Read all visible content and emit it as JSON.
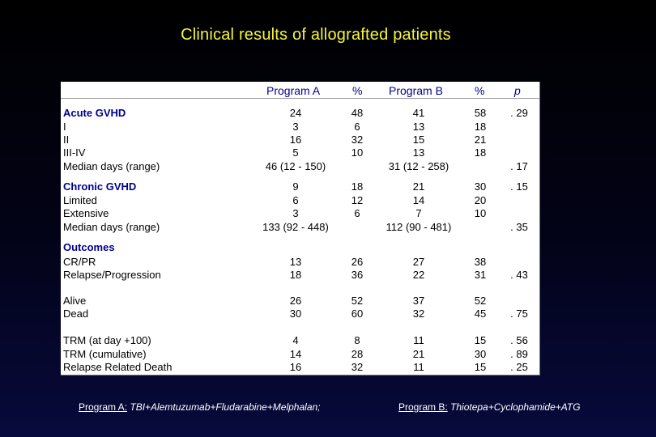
{
  "title": "Clinical results of allografted patients",
  "table": {
    "headers": {
      "program_a": "Program A",
      "pct_a": "%",
      "program_b": "Program B",
      "pct_b": "%",
      "p": "p"
    },
    "rows": [
      {
        "label": "Acute GVHD",
        "a": "24",
        "pa": "48",
        "b": "41",
        "pb": "58",
        "p": ". 29",
        "section": true
      },
      {
        "label": "I",
        "a": "3",
        "pa": "6",
        "b": "13",
        "pb": "18",
        "p": ""
      },
      {
        "label": "II",
        "a": "16",
        "pa": "32",
        "b": "15",
        "pb": "21",
        "p": ""
      },
      {
        "label": "III-IV",
        "a": "5",
        "pa": "10",
        "b": "13",
        "pb": "18",
        "p": ""
      },
      {
        "label": "Median days (range)",
        "a": "46 (12 - 150)",
        "pa": "",
        "b": "31 (12 - 258)",
        "pb": "",
        "p": ". 17"
      },
      {
        "label": "Chronic GVHD",
        "a": "9",
        "pa": "18",
        "b": "21",
        "pb": "30",
        "p": ". 15",
        "section": true
      },
      {
        "label": "Limited",
        "a": "6",
        "pa": "12",
        "b": "14",
        "pb": "20",
        "p": ""
      },
      {
        "label": "Extensive",
        "a": "3",
        "pa": "6",
        "b": "7",
        "pb": "10",
        "p": ""
      },
      {
        "label": "Median days (range)",
        "a": "133 (92 - 448)",
        "pa": "",
        "b": "112 (90 - 481)",
        "pb": "",
        "p": ". 35"
      },
      {
        "label": "Outcomes",
        "a": "",
        "pa": "",
        "b": "",
        "pb": "",
        "p": "",
        "section": true
      },
      {
        "label": "CR/PR",
        "a": "13",
        "pa": "26",
        "b": "27",
        "pb": "38",
        "p": ""
      },
      {
        "label": "Relapse/Progression",
        "a": "18",
        "pa": "36",
        "b": "22",
        "pb": "31",
        "p": ". 43"
      },
      {
        "label": "Alive",
        "a": "26",
        "pa": "52",
        "b": "37",
        "pb": "52",
        "p": ""
      },
      {
        "label": "Dead",
        "a": "30",
        "pa": "60",
        "b": "32",
        "pb": "45",
        "p": ". 75"
      },
      {
        "label": "TRM (at day +100)",
        "a": "4",
        "pa": "8",
        "b": "11",
        "pb": "15",
        "p": ". 56"
      },
      {
        "label": "TRM (cumulative)",
        "a": "14",
        "pa": "28",
        "b": "21",
        "pb": "30",
        "p": ". 89"
      },
      {
        "label": "Relapse Related Death",
        "a": "16",
        "pa": "32",
        "b": "11",
        "pb": "15",
        "p": ". 25"
      }
    ]
  },
  "footer": {
    "program_a_label": "Program A:",
    "program_a_text": " TBI+Alemtuzumab+Fludarabine+Melphalan;",
    "program_b_label": "Program B:",
    "program_b_text": " Thiotepa+Cyclophamide+ATG"
  },
  "colors": {
    "title": "#f5f53a",
    "header": "#00008b",
    "table_bg": "#ffffff"
  }
}
